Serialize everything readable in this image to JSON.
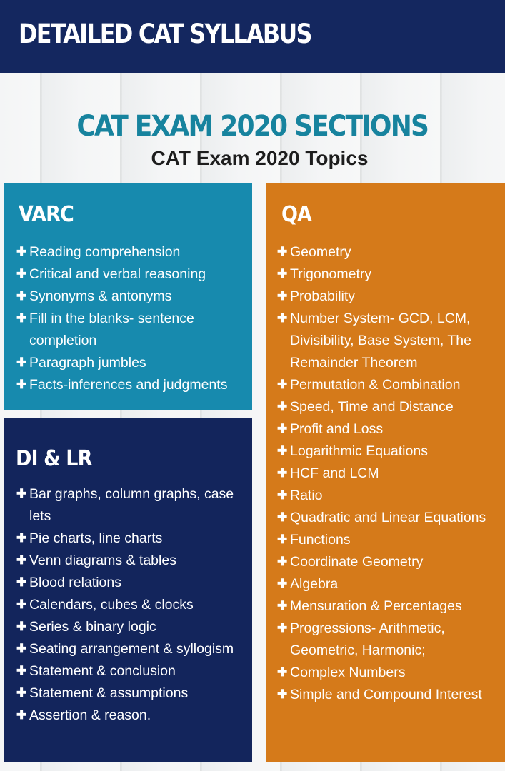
{
  "header": {
    "title": "DETAILED CAT SYLLABUS"
  },
  "subtitle": "CAT EXAM 2020 SECTIONS",
  "topics_heading": "CAT Exam 2020 Topics",
  "bullet_glyph": "✚",
  "colors": {
    "header_bg": "#14275f",
    "accent_teal": "#17839e",
    "varc_bg": "#178aae",
    "dilr_bg": "#13255c",
    "qa_bg": "#d57a1a"
  },
  "varc": {
    "heading": "VARC",
    "items": [
      "Reading comprehension",
      "Critical and verbal reasoning",
      "Synonyms & antonyms",
      "Fill in the blanks- sentence completion",
      "Paragraph jumbles",
      "Facts-inferences and judgments"
    ]
  },
  "dilr": {
    "heading": "DI & LR",
    "items": [
      "Bar graphs, column graphs, case lets",
      "Pie charts, line charts",
      "Venn diagrams & tables",
      "Blood relations",
      "Calendars, cubes & clocks",
      "Series & binary logic",
      "Seating arrangement & syllogism",
      "Statement & conclusion",
      "Statement & assumptions",
      "Assertion & reason."
    ]
  },
  "qa": {
    "heading": "QA",
    "items": [
      "Geometry",
      "Trigonometry",
      "Probability",
      "Number System- GCD, LCM, Divisibility, Base System, The Remainder Theorem",
      "Permutation & Combination",
      "Speed, Time and Distance",
      "Profit and Loss",
      "Logarithmic Equations",
      "HCF and LCM",
      "Ratio",
      "Quadratic and Linear Equations",
      "Functions",
      "Coordinate Geometry",
      "Algebra",
      "Mensuration & Percentages",
      "Progressions- Arithmetic, Geometric, Harmonic;",
      "Complex Numbers",
      "Simple and Compound Interest"
    ]
  }
}
